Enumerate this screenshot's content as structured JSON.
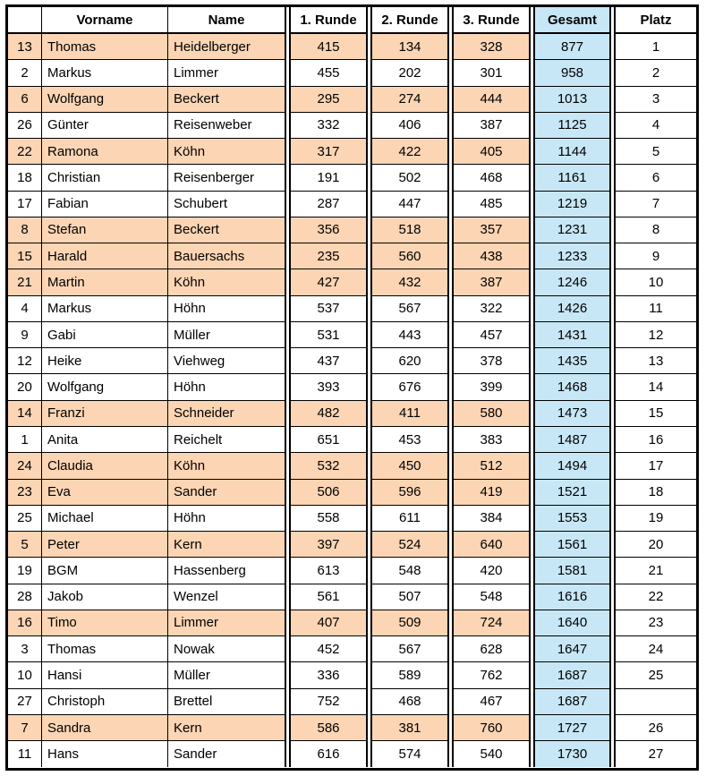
{
  "table": {
    "colors": {
      "highlight": "#FCD5B4",
      "gesamt_fill": "#C8E7F6",
      "border": "#000000",
      "background": "#FFFFFF"
    },
    "columns": [
      {
        "key": "id",
        "label": "",
        "align": "center"
      },
      {
        "key": "vorname",
        "label": "Vorname",
        "align": "left"
      },
      {
        "key": "name",
        "label": "Name",
        "align": "left"
      },
      {
        "key": "runde1",
        "label": "1. Runde",
        "align": "center"
      },
      {
        "key": "runde2",
        "label": "2. Runde",
        "align": "center"
      },
      {
        "key": "runde3",
        "label": "3. Runde",
        "align": "center"
      },
      {
        "key": "gesamt",
        "label": "Gesamt",
        "align": "center"
      },
      {
        "key": "platz",
        "label": "Platz",
        "align": "center"
      }
    ],
    "rows": [
      {
        "id": "13",
        "vorname": "Thomas",
        "name": "Heidelberger",
        "runde1": "415",
        "runde2": "134",
        "runde3": "328",
        "gesamt": "877",
        "platz": "1",
        "highlight": true
      },
      {
        "id": "2",
        "vorname": "Markus",
        "name": "Limmer",
        "runde1": "455",
        "runde2": "202",
        "runde3": "301",
        "gesamt": "958",
        "platz": "2",
        "highlight": false
      },
      {
        "id": "6",
        "vorname": "Wolfgang",
        "name": "Beckert",
        "runde1": "295",
        "runde2": "274",
        "runde3": "444",
        "gesamt": "1013",
        "platz": "3",
        "highlight": true
      },
      {
        "id": "26",
        "vorname": "Günter",
        "name": "Reisenweber",
        "runde1": "332",
        "runde2": "406",
        "runde3": "387",
        "gesamt": "1125",
        "platz": "4",
        "highlight": false
      },
      {
        "id": "22",
        "vorname": "Ramona",
        "name": "Köhn",
        "runde1": "317",
        "runde2": "422",
        "runde3": "405",
        "gesamt": "1144",
        "platz": "5",
        "highlight": true
      },
      {
        "id": "18",
        "vorname": "Christian",
        "name": "Reisenberger",
        "runde1": "191",
        "runde2": "502",
        "runde3": "468",
        "gesamt": "1161",
        "platz": "6",
        "highlight": false
      },
      {
        "id": "17",
        "vorname": "Fabian",
        "name": "Schubert",
        "runde1": "287",
        "runde2": "447",
        "runde3": "485",
        "gesamt": "1219",
        "platz": "7",
        "highlight": false
      },
      {
        "id": "8",
        "vorname": "Stefan",
        "name": "Beckert",
        "runde1": "356",
        "runde2": "518",
        "runde3": "357",
        "gesamt": "1231",
        "platz": "8",
        "highlight": true
      },
      {
        "id": "15",
        "vorname": "Harald",
        "name": "Bauersachs",
        "runde1": "235",
        "runde2": "560",
        "runde3": "438",
        "gesamt": "1233",
        "platz": "9",
        "highlight": true
      },
      {
        "id": "21",
        "vorname": "Martin",
        "name": "Köhn",
        "runde1": "427",
        "runde2": "432",
        "runde3": "387",
        "gesamt": "1246",
        "platz": "10",
        "highlight": true
      },
      {
        "id": "4",
        "vorname": "Markus",
        "name": "Höhn",
        "runde1": "537",
        "runde2": "567",
        "runde3": "322",
        "gesamt": "1426",
        "platz": "11",
        "highlight": false
      },
      {
        "id": "9",
        "vorname": "Gabi",
        "name": "Müller",
        "runde1": "531",
        "runde2": "443",
        "runde3": "457",
        "gesamt": "1431",
        "platz": "12",
        "highlight": false
      },
      {
        "id": "12",
        "vorname": "Heike",
        "name": "Viehweg",
        "runde1": "437",
        "runde2": "620",
        "runde3": "378",
        "gesamt": "1435",
        "platz": "13",
        "highlight": false
      },
      {
        "id": "20",
        "vorname": "Wolfgang",
        "name": "Höhn",
        "runde1": "393",
        "runde2": "676",
        "runde3": "399",
        "gesamt": "1468",
        "platz": "14",
        "highlight": false
      },
      {
        "id": "14",
        "vorname": "Franzi",
        "name": "Schneider",
        "runde1": "482",
        "runde2": "411",
        "runde3": "580",
        "gesamt": "1473",
        "platz": "15",
        "highlight": true
      },
      {
        "id": "1",
        "vorname": "Anita",
        "name": "Reichelt",
        "runde1": "651",
        "runde2": "453",
        "runde3": "383",
        "gesamt": "1487",
        "platz": "16",
        "highlight": false
      },
      {
        "id": "24",
        "vorname": "Claudia",
        "name": "Köhn",
        "runde1": "532",
        "runde2": "450",
        "runde3": "512",
        "gesamt": "1494",
        "platz": "17",
        "highlight": true
      },
      {
        "id": "23",
        "vorname": "Eva",
        "name": "Sander",
        "runde1": "506",
        "runde2": "596",
        "runde3": "419",
        "gesamt": "1521",
        "platz": "18",
        "highlight": true
      },
      {
        "id": "25",
        "vorname": "Michael",
        "name": "Höhn",
        "runde1": "558",
        "runde2": "611",
        "runde3": "384",
        "gesamt": "1553",
        "platz": "19",
        "highlight": false
      },
      {
        "id": "5",
        "vorname": "Peter",
        "name": "Kern",
        "runde1": "397",
        "runde2": "524",
        "runde3": "640",
        "gesamt": "1561",
        "platz": "20",
        "highlight": true
      },
      {
        "id": "19",
        "vorname": "BGM",
        "name": "Hassenberg",
        "runde1": "613",
        "runde2": "548",
        "runde3": "420",
        "gesamt": "1581",
        "platz": "21",
        "highlight": false
      },
      {
        "id": "28",
        "vorname": "Jakob",
        "name": "Wenzel",
        "runde1": "561",
        "runde2": "507",
        "runde3": "548",
        "gesamt": "1616",
        "platz": "22",
        "highlight": false
      },
      {
        "id": "16",
        "vorname": "Timo",
        "name": "Limmer",
        "runde1": "407",
        "runde2": "509",
        "runde3": "724",
        "gesamt": "1640",
        "platz": "23",
        "highlight": true
      },
      {
        "id": "3",
        "vorname": "Thomas",
        "name": "Nowak",
        "runde1": "452",
        "runde2": "567",
        "runde3": "628",
        "gesamt": "1647",
        "platz": "24",
        "highlight": false
      },
      {
        "id": "10",
        "vorname": "Hansi",
        "name": "Müller",
        "runde1": "336",
        "runde2": "589",
        "runde3": "762",
        "gesamt": "1687",
        "platz": "25",
        "highlight": false
      },
      {
        "id": "27",
        "vorname": "Christoph",
        "name": "Brettel",
        "runde1": "752",
        "runde2": "468",
        "runde3": "467",
        "gesamt": "1687",
        "platz": "",
        "highlight": false
      },
      {
        "id": "7",
        "vorname": "Sandra",
        "name": "Kern",
        "runde1": "586",
        "runde2": "381",
        "runde3": "760",
        "gesamt": "1727",
        "platz": "26",
        "highlight": true
      },
      {
        "id": "11",
        "vorname": "Hans",
        "name": "Sander",
        "runde1": "616",
        "runde2": "574",
        "runde3": "540",
        "gesamt": "1730",
        "platz": "27",
        "highlight": false
      }
    ]
  }
}
